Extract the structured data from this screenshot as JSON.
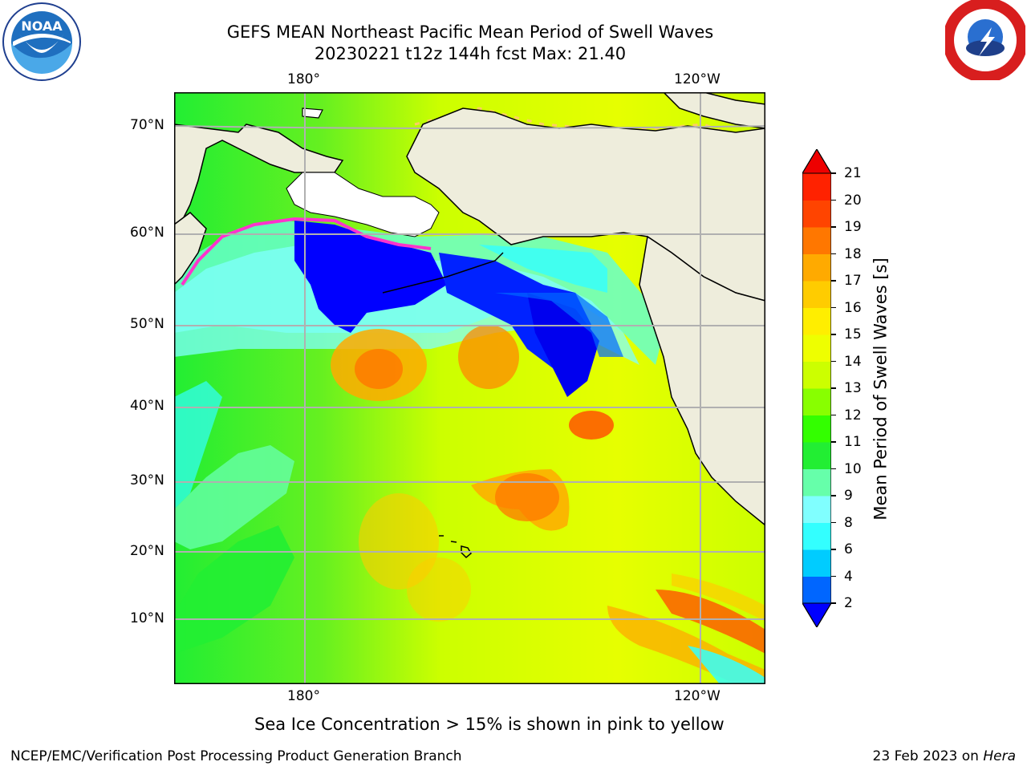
{
  "header": {
    "title_line1": "GEFS MEAN Northeast Pacific Mean Period of Swell Waves",
    "title_line2": "20230221 t12z 144h fcst   Max: 21.40",
    "logo_left": "noaa-logo",
    "logo_right": "nws-logo"
  },
  "map": {
    "lon_labels_top": [
      "180°",
      "120°W"
    ],
    "lon_labels_bottom": [
      "180°",
      "120°W"
    ],
    "lat_labels": [
      "70°N",
      "60°N",
      "50°N",
      "40°N",
      "30°N",
      "20°N",
      "10°N"
    ],
    "land_color": "#eeeddc",
    "gridline_color": "#b0b0b0",
    "ice_colors": [
      "#ff66cc",
      "#ffe680",
      "#ffff66"
    ]
  },
  "colorbar": {
    "label": "Mean Period of Swell Waves [s]",
    "ticks": [
      "2",
      "4",
      "6",
      "8",
      "9",
      "10",
      "11",
      "12",
      "13",
      "14",
      "15",
      "16",
      "17",
      "18",
      "19",
      "20",
      "21"
    ],
    "colors": [
      "#0000ff",
      "#0066ff",
      "#00ccff",
      "#33ffff",
      "#80ffff",
      "#66ffaa",
      "#22ee33",
      "#33ff00",
      "#88ff00",
      "#ccff00",
      "#eeff00",
      "#ffee00",
      "#ffcc00",
      "#ffaa00",
      "#ff7700",
      "#ff4400",
      "#ff2200",
      "#ee0000"
    ],
    "under_color": "#0000ff",
    "over_color": "#ee0000"
  },
  "footer": {
    "ice_note": "Sea Ice Concentration > 15% is shown in pink to yellow",
    "producer": "NCEP/EMC/Verification Post Processing Product Generation Branch",
    "date_prefix": "23 Feb 2023 on ",
    "machine": "Hera"
  }
}
